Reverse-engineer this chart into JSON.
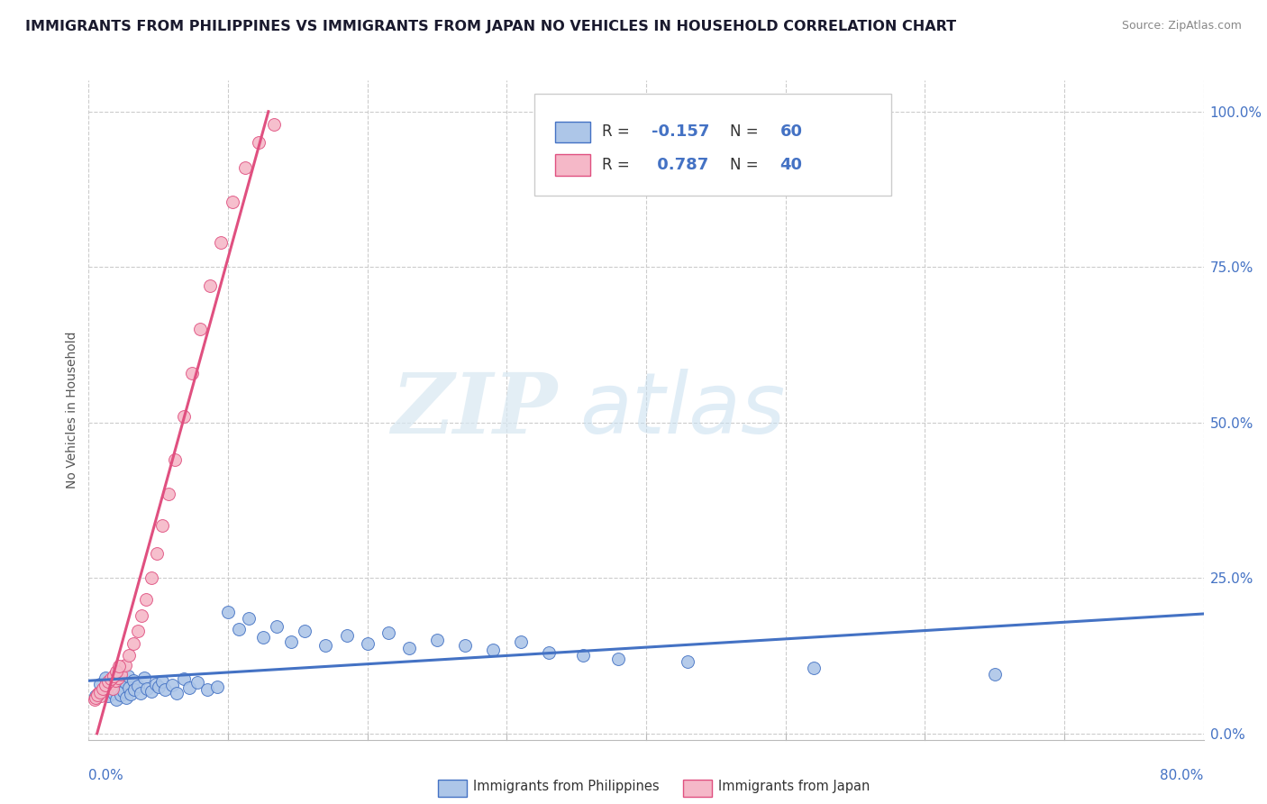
{
  "title": "IMMIGRANTS FROM PHILIPPINES VS IMMIGRANTS FROM JAPAN NO VEHICLES IN HOUSEHOLD CORRELATION CHART",
  "source": "Source: ZipAtlas.com",
  "ylabel": "No Vehicles in Household",
  "r1": -0.157,
  "n1": 60,
  "r2": 0.787,
  "n2": 40,
  "color1": "#adc6e8",
  "color2": "#f5b8c8",
  "line_color1": "#4472c4",
  "line_color2": "#e05080",
  "watermark_zip": "ZIP",
  "watermark_atlas": "atlas",
  "title_color": "#1a1a2e",
  "title_fontsize": 11.5,
  "blue_label_color": "#4472c4",
  "xlim": [
    0.0,
    0.8
  ],
  "ylim": [
    -0.01,
    1.05
  ],
  "right_yticks": [
    0.0,
    0.25,
    0.5,
    0.75,
    1.0
  ],
  "right_yticklabels": [
    "0.0%",
    "25.0%",
    "50.0%",
    "75.0%",
    "100.0%"
  ],
  "philippines_x": [
    0.005,
    0.008,
    0.01,
    0.012,
    0.014,
    0.016,
    0.017,
    0.018,
    0.019,
    0.02,
    0.021,
    0.022,
    0.023,
    0.024,
    0.025,
    0.026,
    0.027,
    0.028,
    0.029,
    0.03,
    0.032,
    0.033,
    0.035,
    0.037,
    0.04,
    0.042,
    0.045,
    0.048,
    0.05,
    0.053,
    0.055,
    0.06,
    0.063,
    0.068,
    0.072,
    0.078,
    0.085,
    0.092,
    0.1,
    0.108,
    0.115,
    0.125,
    0.135,
    0.145,
    0.155,
    0.17,
    0.185,
    0.2,
    0.215,
    0.23,
    0.25,
    0.27,
    0.29,
    0.31,
    0.33,
    0.355,
    0.38,
    0.43,
    0.52,
    0.65
  ],
  "philippines_y": [
    0.06,
    0.08,
    0.07,
    0.09,
    0.06,
    0.075,
    0.085,
    0.065,
    0.095,
    0.055,
    0.072,
    0.088,
    0.062,
    0.078,
    0.068,
    0.082,
    0.058,
    0.092,
    0.073,
    0.063,
    0.085,
    0.07,
    0.077,
    0.065,
    0.09,
    0.072,
    0.068,
    0.08,
    0.075,
    0.083,
    0.07,
    0.078,
    0.065,
    0.088,
    0.073,
    0.082,
    0.07,
    0.075,
    0.195,
    0.168,
    0.185,
    0.155,
    0.172,
    0.148,
    0.165,
    0.142,
    0.158,
    0.145,
    0.162,
    0.138,
    0.15,
    0.142,
    0.135,
    0.148,
    0.13,
    0.125,
    0.12,
    0.115,
    0.105,
    0.095
  ],
  "japan_x": [
    0.004,
    0.007,
    0.009,
    0.011,
    0.013,
    0.015,
    0.017,
    0.019,
    0.021,
    0.023,
    0.026,
    0.029,
    0.032,
    0.035,
    0.038,
    0.041,
    0.045,
    0.049,
    0.053,
    0.057,
    0.062,
    0.068,
    0.074,
    0.08,
    0.087,
    0.095,
    0.103,
    0.112,
    0.122,
    0.133,
    0.005,
    0.006,
    0.008,
    0.01,
    0.012,
    0.014,
    0.016,
    0.018,
    0.02,
    0.022
  ],
  "japan_y": [
    0.055,
    0.065,
    0.06,
    0.07,
    0.075,
    0.08,
    0.072,
    0.085,
    0.09,
    0.095,
    0.11,
    0.125,
    0.145,
    0.165,
    0.19,
    0.215,
    0.25,
    0.29,
    0.335,
    0.385,
    0.44,
    0.51,
    0.58,
    0.65,
    0.72,
    0.79,
    0.855,
    0.91,
    0.95,
    0.98,
    0.058,
    0.062,
    0.067,
    0.072,
    0.078,
    0.083,
    0.088,
    0.093,
    0.1,
    0.108
  ]
}
